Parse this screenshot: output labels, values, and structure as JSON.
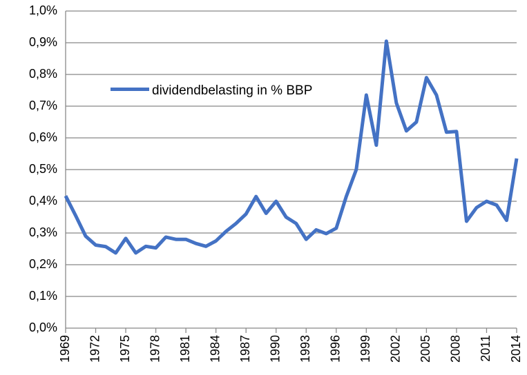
{
  "chart_data": {
    "type": "line",
    "x": [
      1969,
      1970,
      1971,
      1972,
      1973,
      1974,
      1975,
      1976,
      1977,
      1978,
      1979,
      1980,
      1981,
      1982,
      1983,
      1984,
      1985,
      1986,
      1987,
      1988,
      1989,
      1990,
      1991,
      1992,
      1993,
      1994,
      1995,
      1996,
      1997,
      1998,
      1999,
      2000,
      2001,
      2002,
      2003,
      2004,
      2005,
      2006,
      2007,
      2008,
      2009,
      2010,
      2011,
      2012,
      2013,
      2014
    ],
    "series": [
      {
        "name": "dividendbelasting in % BBP",
        "color": "#4472c4",
        "values": [
          0.417,
          0.355,
          0.29,
          0.262,
          0.257,
          0.237,
          0.283,
          0.237,
          0.258,
          0.253,
          0.287,
          0.28,
          0.28,
          0.267,
          0.258,
          0.275,
          0.305,
          0.33,
          0.36,
          0.415,
          0.362,
          0.4,
          0.35,
          0.33,
          0.28,
          0.31,
          0.298,
          0.315,
          0.415,
          0.5,
          0.735,
          0.577,
          0.905,
          0.71,
          0.622,
          0.65,
          0.79,
          0.735,
          0.618,
          0.62,
          0.337,
          0.38,
          0.4,
          0.388,
          0.34,
          0.535
        ]
      }
    ],
    "xlim": [
      1969,
      2014
    ],
    "xticks": [
      1969,
      1972,
      1975,
      1978,
      1981,
      1984,
      1987,
      1990,
      1993,
      1996,
      1999,
      2002,
      2005,
      2008,
      2011,
      2014
    ],
    "ylim": [
      0,
      1
    ],
    "yticks": [
      {
        "value": 0,
        "label": "0,0%"
      },
      {
        "value": 0.1,
        "label": "0,1%"
      },
      {
        "value": 0.2,
        "label": "0,2%"
      },
      {
        "value": 0.3,
        "label": "0,3%"
      },
      {
        "value": 0.4,
        "label": "0,4%"
      },
      {
        "value": 0.5,
        "label": "0,5%"
      },
      {
        "value": 0.6,
        "label": "0,6%"
      },
      {
        "value": 0.7,
        "label": "0,7%"
      },
      {
        "value": 0.8,
        "label": "0,8%"
      },
      {
        "value": 0.9,
        "label": "0,9%"
      },
      {
        "value": 1,
        "label": "1,0%"
      }
    ],
    "grid": true,
    "legend": "upper-left"
  }
}
